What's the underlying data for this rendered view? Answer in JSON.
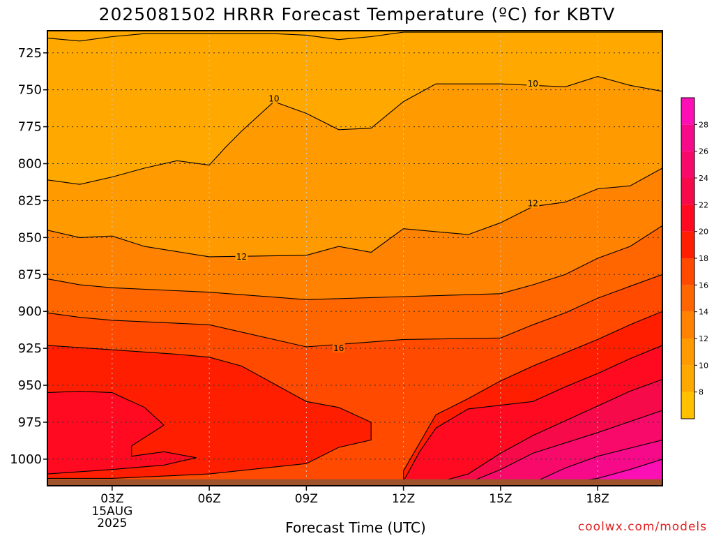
{
  "chart_data": {
    "type": "heatmap",
    "title": "2025081502 HRRR Forecast Temperature (ºC) for KBTV",
    "xlabel": "Forecast Time (UTC)",
    "ylabel": "",
    "credit": "coolwx.com/models",
    "x_ticks": [
      "03Z",
      "06Z",
      "09Z",
      "12Z",
      "15Z",
      "18Z"
    ],
    "x_date_label": [
      "15AUG",
      "2025"
    ],
    "x_range_hours": [
      1,
      20
    ],
    "y_ticks": [
      725,
      750,
      775,
      800,
      825,
      850,
      875,
      900,
      925,
      950,
      975,
      1000
    ],
    "y_range_hpa": [
      710,
      1018
    ],
    "colorbar_ticks": [
      8,
      10,
      12,
      14,
      16,
      18,
      20,
      22,
      24,
      26,
      28
    ],
    "colorbar_range": [
      6,
      30
    ],
    "color_bands": [
      {
        "min": 6,
        "color": "#ffc000"
      },
      {
        "min": 8,
        "color": "#ffa800"
      },
      {
        "min": 10,
        "color": "#ff9a00"
      },
      {
        "min": 12,
        "color": "#ff8200"
      },
      {
        "min": 14,
        "color": "#ff6600"
      },
      {
        "min": 16,
        "color": "#ff4a00"
      },
      {
        "min": 18,
        "color": "#ff1e00"
      },
      {
        "min": 20,
        "color": "#ff0a20"
      },
      {
        "min": 22,
        "color": "#f70a4a"
      },
      {
        "min": 24,
        "color": "#f70a6a"
      },
      {
        "min": 26,
        "color": "#f70a8a"
      },
      {
        "min": 28,
        "color": "#fc0fb4"
      }
    ],
    "ground_color": "#a0522d",
    "contour_labels": [
      {
        "text": "10",
        "hour": 8.0,
        "hpa": 756
      },
      {
        "text": "10",
        "hour": 16.0,
        "hpa": 746
      },
      {
        "text": "12",
        "hour": 7.0,
        "hpa": 863
      },
      {
        "text": "12",
        "hour": 16.0,
        "hpa": 827
      },
      {
        "text": "16",
        "hour": 10.0,
        "hpa": 925
      }
    ],
    "isotherms": [
      {
        "value": 8,
        "points": [
          [
            1,
            715
          ],
          [
            2.0,
            717
          ],
          [
            3.0,
            714
          ],
          [
            4.0,
            712
          ],
          [
            8.0,
            712
          ],
          [
            9.0,
            713
          ],
          [
            10.0,
            716
          ],
          [
            11.0,
            714
          ],
          [
            12.0,
            711
          ],
          [
            20,
            711
          ]
        ]
      },
      {
        "value": 10,
        "points": [
          [
            1,
            811
          ],
          [
            2.0,
            814
          ],
          [
            3.0,
            809
          ],
          [
            4.0,
            803
          ],
          [
            5.0,
            798
          ],
          [
            6.0,
            801
          ],
          [
            6.5,
            789
          ],
          [
            7.0,
            778
          ],
          [
            8.0,
            758
          ],
          [
            9.0,
            766
          ],
          [
            10.0,
            777
          ],
          [
            11.0,
            776
          ],
          [
            12.0,
            758
          ],
          [
            13.0,
            746
          ],
          [
            15.0,
            746
          ],
          [
            17.0,
            748
          ],
          [
            18.0,
            741
          ],
          [
            19.0,
            747
          ],
          [
            20,
            751
          ]
        ]
      },
      {
        "value": 12,
        "points": [
          [
            1,
            845
          ],
          [
            2.0,
            850
          ],
          [
            3.0,
            849
          ],
          [
            4.0,
            856
          ],
          [
            6.0,
            863
          ],
          [
            9.0,
            862
          ],
          [
            10.0,
            856
          ],
          [
            11.0,
            860
          ],
          [
            12.0,
            844
          ],
          [
            14.0,
            848
          ],
          [
            15.0,
            840
          ],
          [
            16.0,
            829
          ],
          [
            17.0,
            826
          ],
          [
            18.0,
            817
          ],
          [
            19.0,
            815
          ],
          [
            20,
            803
          ]
        ]
      },
      {
        "value": 14,
        "points": [
          [
            1,
            878
          ],
          [
            2.0,
            882
          ],
          [
            3.0,
            884
          ],
          [
            6.0,
            887
          ],
          [
            9.0,
            892
          ],
          [
            12.0,
            890
          ],
          [
            15.0,
            888
          ],
          [
            16.0,
            882
          ],
          [
            17.0,
            875
          ],
          [
            18.0,
            864
          ],
          [
            19.0,
            856
          ],
          [
            20,
            842
          ]
        ]
      },
      {
        "value": 16,
        "points": [
          [
            1,
            901
          ],
          [
            2.0,
            904
          ],
          [
            3.0,
            906
          ],
          [
            6.0,
            909
          ],
          [
            9.0,
            924
          ],
          [
            12.0,
            919
          ],
          [
            15.0,
            918
          ],
          [
            16.0,
            909
          ],
          [
            17.0,
            901
          ],
          [
            18.0,
            891
          ],
          [
            19.0,
            883
          ],
          [
            20,
            875
          ]
        ]
      },
      {
        "value": 18,
        "points": [
          [
            1,
            923
          ],
          [
            3.0,
            926
          ],
          [
            5.0,
            929
          ],
          [
            6.0,
            931
          ],
          [
            7.0,
            937
          ],
          [
            8.0,
            949
          ],
          [
            9.0,
            961
          ],
          [
            10.0,
            965
          ],
          [
            11.0,
            975
          ],
          [
            11.0,
            980
          ],
          [
            11.0,
            987
          ],
          [
            10.0,
            992
          ],
          [
            9.0,
            1003
          ],
          [
            6.0,
            1010
          ],
          [
            3.0,
            1013
          ],
          [
            1,
            1013
          ]
        ]
      },
      {
        "value": 18,
        "points": [
          [
            20,
            900
          ],
          [
            19.0,
            909
          ],
          [
            18.0,
            919
          ],
          [
            17.0,
            928
          ],
          [
            16.0,
            937
          ],
          [
            15.0,
            947
          ],
          [
            14.0,
            959
          ],
          [
            13.0,
            970
          ],
          [
            12.0,
            1008
          ],
          [
            12.0,
            1016
          ]
        ]
      },
      {
        "value": 20,
        "points": [
          [
            1,
            955
          ],
          [
            2.0,
            954
          ],
          [
            3.0,
            955
          ],
          [
            4.0,
            965
          ],
          [
            4.6,
            977
          ],
          [
            3.6,
            991
          ],
          [
            3.6,
            998
          ],
          [
            4.6,
            995
          ],
          [
            5.6,
            999
          ],
          [
            4.6,
            1004
          ],
          [
            3.0,
            1007
          ],
          [
            1,
            1010
          ]
        ]
      },
      {
        "value": 20,
        "points": [
          [
            20,
            923
          ],
          [
            19.0,
            932
          ],
          [
            18.0,
            942
          ],
          [
            17.0,
            951
          ],
          [
            16.0,
            961
          ],
          [
            14.0,
            966
          ],
          [
            13.0,
            979
          ],
          [
            12.5,
            995
          ],
          [
            12.0,
            1015
          ]
        ]
      },
      {
        "value": 22,
        "points": [
          [
            20,
            946
          ],
          [
            19.0,
            954
          ],
          [
            18.0,
            964
          ],
          [
            17.0,
            974
          ],
          [
            16.0,
            984
          ],
          [
            15.0,
            996
          ],
          [
            14.0,
            1010
          ],
          [
            13.0,
            1016
          ]
        ]
      },
      {
        "value": 24,
        "points": [
          [
            20,
            967
          ],
          [
            18.0,
            982
          ],
          [
            16.0,
            996
          ],
          [
            15.0,
            1007
          ],
          [
            14.0,
            1016
          ]
        ]
      },
      {
        "value": 26,
        "points": [
          [
            20,
            987
          ],
          [
            18.0,
            998
          ],
          [
            17.0,
            1006
          ],
          [
            16.0,
            1016
          ]
        ]
      },
      {
        "value": 28,
        "points": [
          [
            20,
            1000
          ],
          [
            19.0,
            1007
          ],
          [
            18.0,
            1013
          ],
          [
            17.0,
            1016
          ]
        ]
      }
    ]
  }
}
